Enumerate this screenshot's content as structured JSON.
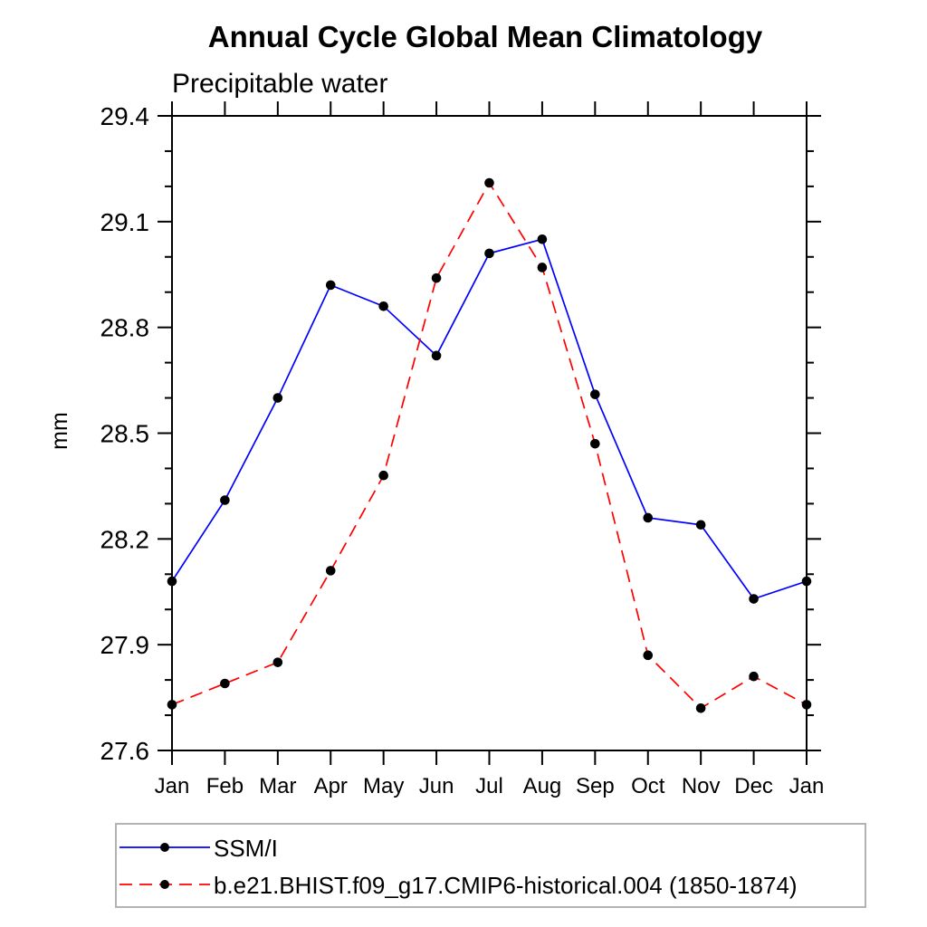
{
  "page": {
    "background_color": "#ffffff",
    "text_color": "#000000"
  },
  "chart_data": {
    "type": "line",
    "title": "Annual Cycle Global Mean Climatology",
    "subtitle": "Precipitable water",
    "ylabel": "mm",
    "xlabel": "",
    "categories": [
      "Jan",
      "Feb",
      "Mar",
      "Apr",
      "May",
      "Jun",
      "Jul",
      "Aug",
      "Sep",
      "Oct",
      "Nov",
      "Dec",
      "Jan"
    ],
    "series": [
      {
        "name": "SSM/I",
        "line_color": "#0000ff",
        "line_style": "solid",
        "marker": "filled-circle",
        "marker_color": "#000000",
        "values": [
          28.08,
          28.31,
          28.6,
          28.92,
          28.86,
          28.72,
          29.01,
          29.05,
          28.61,
          28.26,
          28.24,
          28.03,
          28.08
        ]
      },
      {
        "name": "b.e21.BHIST.f09_g17.CMIP6-historical.004 (1850-1874)",
        "line_color": "#ff0000",
        "line_style": "dashed",
        "marker": "filled-circle",
        "marker_color": "#000000",
        "values": [
          27.73,
          27.79,
          27.85,
          28.11,
          28.38,
          28.94,
          29.21,
          28.97,
          28.47,
          27.87,
          27.72,
          27.81,
          27.73
        ]
      }
    ],
    "ylim": [
      27.6,
      29.4
    ],
    "y_major_ticks": [
      27.6,
      27.9,
      28.2,
      28.5,
      28.8,
      29.1,
      29.4
    ],
    "y_minor_step": 0.1,
    "grid": false,
    "legend_position": "bottom-left",
    "axis_color": "#000000",
    "legend_border_color": "#b3b3b3"
  }
}
